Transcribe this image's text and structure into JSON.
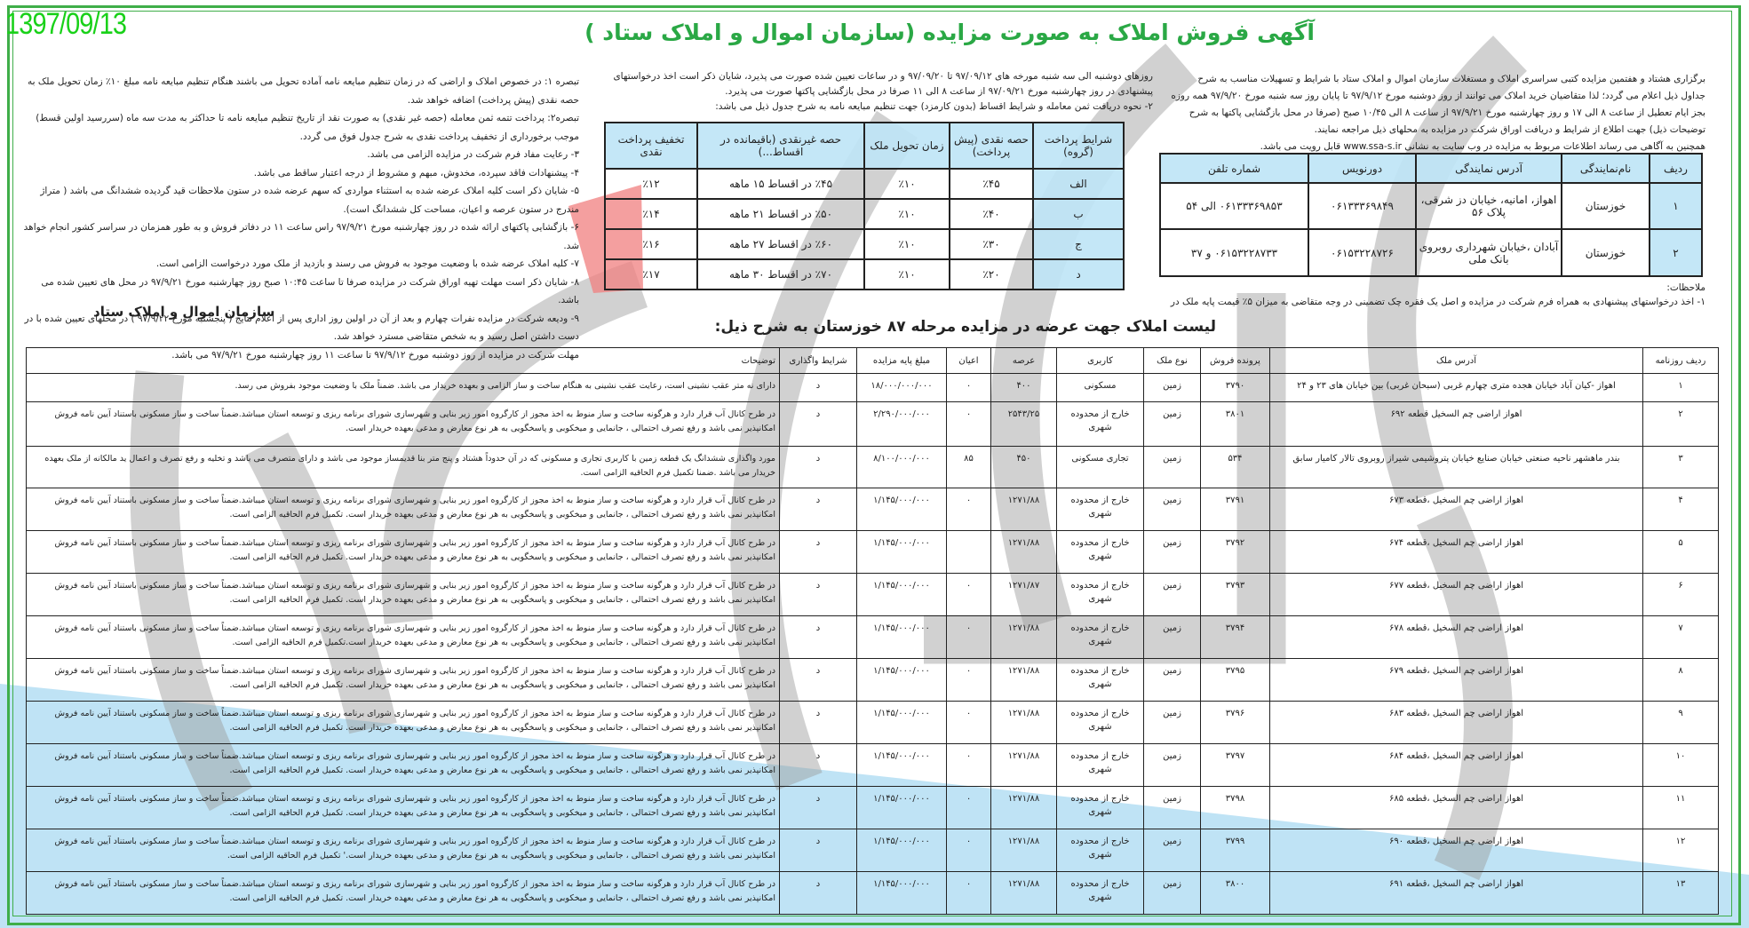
{
  "header": {
    "date": "1397/09/13",
    "title": "آگهی فروش املاک به صورت مزایده  (سازمان اموال و املاک ستاد )"
  },
  "colors": {
    "frame": "#3fae49",
    "title": "#2aa845",
    "date": "#19d119",
    "table_header": "#bee4f6"
  },
  "intro": {
    "paragraph": "برگزاری هشتاد و هفتمین مزایده کتبی سراسری املاک و مستغلات سازمان اموال و املاک ستاد با شرایط و تسهیلات مناسب به شرح جداول ذیل اعلام می گردد؛ لذا متقاضیان خرید املاک می توانند از روز دوشنبه مورخ ۹۷/۹/۱۲ تا پایان روز سه شنبه مورخ ۹۷/۹/۲۰ همه روزه بجز ایام تعطیل از ساعت ۸ الی ۱۷ و روز چهارشنبه مورخ ۹۷/۹/۲۱ از ساعت ۸ الی ۱۰/۴۵ صبح (صرفا در محل بازگشایی پاکتها به شرح توضیحات ذیل)  جهت اطلاع از شرایط و دریافت اوراق شرکت در مزایده به محلهای ذیل مراجعه نمایند.",
    "website_line": "همچنین به آگاهی می رساند اطلاعات مربوط به مزایده در وب سایت به نشانی www.ssa-s.ir قابل رویت می باشد."
  },
  "rep_table": {
    "headers": [
      "ردیف",
      "نام‌نمایندگی",
      "آدرس نمایندگی",
      "دورنویس",
      "شماره تلفن"
    ],
    "rows": [
      [
        "۱",
        "خوزستان",
        "اهواز، امانیه، خیابان دز شرقی، پلاک ۵۶",
        "۰۶۱۳۳۳۶۹۸۴۹",
        "۰۶۱۳۳۳۶۹۸۵۳ الی ۵۴"
      ],
      [
        "۲",
        "خوزستان",
        "آبادان ،خیابان شهرداری روبروی بانک ملی",
        "۰۶۱۵۳۲۲۸۷۲۶",
        "۰۶۱۵۳۲۲۸۷۳۳ و ۳۷"
      ]
    ]
  },
  "notes": {
    "label": "ملاحظات:",
    "item1": "۱- اخذ درخواستهای پیشنهادی به همراه فرم شرکت در مزایده و اصل یک فقره چک تضمینی در وجه متقاضی به میزان ۵٪ قیمت پایه ملک در"
  },
  "middle": {
    "paragraph": "روزهای دوشنبه الی سه شنبه مورخه های ۹۷/۰۹/۱۲ تا ۹۷/۰۹/۲۰ و در ساعات تعیین شده صورت می پذیرد، شایان ذکر است اخذ درخواستهای پیشنهادی در روز چهارشنبه مورخ ۹۷/۰۹/۲۱ از ساعت ۸ الی ۱۱ صرفا در محل بازگشایی پاکتها صورت می پذیرد.",
    "item2": "۲-  نحوه دریافت ثمن معامله و شرایط اقساط (بدون کارمزد) جهت تنظیم مبایعه نامه به شرح جدول ذیل می باشد:"
  },
  "payment_table": {
    "headers": [
      "شرایط پرداخت (گروه)",
      "حصه نقدی (پیش پرداخت)",
      "زمان تحویل ملک",
      "حصه غیرنقدی (باقیمانده در اقساط...)",
      "تخفیف پرداخت نقدی"
    ],
    "rows": [
      [
        "الف",
        "٪۴۵",
        "٪۱۰",
        "٪۴۵ در اقساط ۱۵ ماهه",
        "٪۱۲"
      ],
      [
        "ب",
        "٪۴۰",
        "٪۱۰",
        "٪۵۰ در اقساط ۲۱ ماهه",
        "٪۱۴"
      ],
      [
        "ج",
        "٪۳۰",
        "٪۱۰",
        "٪۶۰ در اقساط ۲۷ ماهه",
        "٪۱۶"
      ],
      [
        "د",
        "٪۲۰",
        "٪۱۰",
        "٪۷۰ در اقساط ۳۰ ماهه",
        "٪۱۷"
      ]
    ]
  },
  "left_notes": [
    "تبصره ۱: در خصوص املاک و اراضی که در زمان تنظیم مبایعه نامه آماده تحویل می باشند هنگام تنظیم مبایعه نامه مبلغ ۱۰٪ زمان تحویل ملک به حصه نقدی (پیش پرداخت) اضافه خواهد شد.",
    "تبصره۲: پرداخت تتمه ثمن معامله (حصه غیر نقدی) به صورت نقد از تاریخ تنظیم مبایعه نامه تا حداکثر به مدت سه ماه (سررسید اولین قسط) موجب برخورداری از تخفیف پرداخت نقدی به شرح جدول فوق می گردد.",
    "۳-  رعایت مفاد فرم شرکت در مزایده الزامی می باشد.",
    "۴-  پیشنهادات فاقد سپرده، مخدوش، مبهم و مشروط از درجه اعتبار ساقط می باشد.",
    "۵-  شایان ذکر است کلیه املاک عرضه شده به استثناء مواردی که سهم عرضه شده در ستون ملاحظات قید گردیده ششدانگ می باشد ( متراژ مندرج در ستون عرصه و اعیان، مساحت کل ششدانگ است).",
    "۶-  بازگشایی پاکتهای ارائه شده در روز چهارشنبه مورخ ۹۷/۹/۲۱ راس ساعت ۱۱ در دفاتر فروش و به طور همزمان در سراسر کشور انجام خواهد شد.",
    "۷-  کلیه املاک عرضه شده با وضعیت موجود به فروش می رسند و بازدید از ملک مورد درخواست الزامی است.",
    "۸-  شایان ذکر است مهلت تهیه اوراق شرکت در مزایده صرفا تا ساعت ۱۰:۴۵ صبح روز چهارشنبه مورخ ۹۷/۹/۲۱ در محل های تعیین شده می باشد.",
    "۹-  ودیعه شرکت در مزایده نفرات چهارم و بعد از آن در اولین روز اداری پس از اعلام نتایج ( پنجشنبه مورخ ۹۷/۹/۲۲ ) در محلهای تعیین شده با در دست داشتن اصل رسید و به شخص متقاضی مسترد خواهد شد.",
    "مهلت شرکت در مزایده از روز دوشنبه مورخ ۹۷/۹/۱۲ تا ساعت ۱۱ روز چهارشنبه مورخ ۹۷/۹/۲۱ می باشد."
  ],
  "signature": "سازمان اموال و املاک ستاد",
  "listing": {
    "title": "لیست املاک جهت عرضه در مزایده مرحله ۸۷ خوزستان به شرح ذیل:",
    "headers": [
      "ردیف روزنامه",
      "آدرس ملک",
      "پرونده فروش",
      "نوع ملک",
      "کاربری",
      "عرصه",
      "اعیان",
      "مبلغ پایه مزایده",
      "شرایط واگذاری",
      "توضیحات"
    ],
    "rows": [
      [
        "۱",
        "اهواز -کیان آباد خیابان هجده متری چهارم غربی (سبحان غربی) بین خیابان های ۲۳ و ۲۴",
        "۳۷۹۰",
        "زمین",
        "مسکونی",
        "۴۰۰",
        "۰",
        "۱۸/۰۰۰/۰۰۰/۰۰۰",
        "د",
        "دارای نه متر عقب نشینی است، رعایت عقب نشینی به هنگام ساخت و ساز الزامی و بعهده خریدار می باشد. ضمناً ملک با وضعیت موجود بفروش می رسد."
      ],
      [
        "۲",
        "اهواز اراضی چم السخیل قطعه ۶۹۲",
        "۳۸۰۱",
        "زمین",
        "خارج از محدوده شهری",
        "۲۵۴۳/۲۵",
        "۰",
        "۲/۲۹۰/۰۰۰/۰۰۰",
        "د",
        "در طرح کانال آب قرار دارد و هرگونه ساخت و ساز منوط به اخذ مجوز از کارگروه امور زیر بنایی و شهرسازی شورای برنامه ریزی و توسعه استان میباشد.ضمناً ساخت و ساز مسکونی باستناد آیین نامه فروش امکانپذیر نمی باشد و رفع تصرف احتمالی ، جانمایی و میخکوبی و پاسخگویی به هر نوع معارض و مدعی بعهده خریدار است."
      ],
      [
        "۳",
        "بندر ماهشهر ناحیه صنعتی خیابان صنایع خیابان پتروشیمی شیراز روبروی تالار کامیار سابق",
        "۵۳۴",
        "زمین",
        "تجاری مسکونی",
        "۴۵۰",
        "۸۵",
        "۸/۱۰۰/۰۰۰/۰۰۰",
        "د",
        "مورد واگذاری ششدانگ یک قطعه زمین با کاربری تجاری و مسکونی که در آن حدوداً هشتاد و پنج متر بنا قدیمساز موجود می باشد و دارای متصرف می باشد و تخلیه و رفع تصرف و اعمال ید مالکانه از ملک بعهده خریدار می باشد .ضمنا تکمیل فرم الحاقیه الزامی است."
      ],
      [
        "۴",
        "اهواز اراضی چم السخیل ،قطعه ۶۷۳",
        "۳۷۹۱",
        "زمین",
        "خارج از محدوده شهری",
        "۱۲۷۱/۸۸",
        "۰",
        "۱/۱۴۵/۰۰۰/۰۰۰",
        "د",
        "در طرح کانال آب قرار دارد و هرگونه ساخت و ساز منوط به اخذ مجوز از کارگروه امور زیر بنایی و شهرسازی شورای برنامه ریزی و توسعه استان میباشد.ضمناً ساخت و ساز مسکونی باستناد آیین نامه فروش امکانپذیر نمی باشد و رفع تصرف احتمالی ، جانمایی و میخکوبی و پاسخگویی به هر نوع معارض و مدعی بعهده خریدار است. تکمیل فرم الحاقیه الزامی است."
      ],
      [
        "۵",
        "اهواز اراضی چم السخیل ،قطعه ۶۷۴",
        "۳۷۹۲",
        "زمین",
        "خارج از محدوده شهری",
        "۱۲۷۱/۸۸",
        "",
        "۱/۱۴۵/۰۰۰/۰۰۰",
        "د",
        "در طرح کانال آب قرار دارد و هرگونه ساخت و ساز منوط به اخذ مجوز از کارگروه امور زیر بنایی و شهرسازی شورای برنامه ریزی و توسعه استان میباشد.ضمناً ساخت و ساز مسکونی باستناد آیین نامه فروش امکانپذیر نمی باشد و رفع تصرف احتمالی ، جانمایی و میخکوبی و پاسخگویی به هر نوع معارض و مدعی بعهده خریدار است. تکمیل فرم الحاقیه الزامی است."
      ],
      [
        "۶",
        "اهواز اراضی چم السخیل ،قطعه ۶۷۷",
        "۳۷۹۳",
        "زمین",
        "خارج از محدوده شهری",
        "۱۲۷۱/۸۷",
        "۰",
        "۱/۱۴۵/۰۰۰/۰۰۰",
        "د",
        "در طرح کانال آب قرار دارد و هرگونه ساخت و ساز منوط به اخذ مجوز از کارگروه امور زیر بنایی و شهرسازی شورای برنامه ریزی و توسعه استان میباشد.ضمناً ساخت و ساز مسکونی باستناد آیین نامه فروش امکانپذیر نمی باشد و رفع تصرف احتمالی ، جانمایی و میخکوبی و پاسخگویی به هر نوع معارض و مدعی بعهده خریدار است. تکمیل فرم الحاقیه الزامی است."
      ],
      [
        "۷",
        "اهواز اراضی چم السخیل ،قطعه ۶۷۸",
        "۳۷۹۴",
        "زمین",
        "خارج از محدوده شهری",
        "۱۲۷۱/۸۸",
        "۰",
        "۱/۱۴۵/۰۰۰/۰۰۰",
        "د",
        "در طرح کانال آب قرار دارد و هرگونه ساخت و ساز منوط به اخذ مجوز از کارگروه امور زیر بنایی و شهرسازی شورای برنامه ریزی و توسعه استان میباشد.ضمناً ساخت و ساز مسکونی باستناد آیین نامه فروش امکانپذیر نمی باشد و رفع تصرف احتمالی ، جانمایی و میخکوبی و پاسخگویی به هر نوع معارض و مدعی بعهده خریدار است.تکمیل فرم الحاقیه الزامی است."
      ],
      [
        "۸",
        "اهواز اراضی چم السخیل ،قطعه ۶۷۹",
        "۳۷۹۵",
        "زمین",
        "خارج از محدوده شهری",
        "۱۲۷۱/۸۸",
        "۰",
        "۱/۱۴۵/۰۰۰/۰۰۰",
        "د",
        "در طرح کانال آب قرار دارد و هرگونه ساخت و ساز منوط به اخذ مجوز از کارگروه امور زیر بنایی و شهرسازی شورای برنامه ریزی و توسعه استان میباشد.ضمناً ساخت و ساز مسکونی باستناد آیین نامه فروش امکانپذیر نمی باشد و رفع تصرف احتمالی ، جانمایی و میخکوبی و پاسخگویی به هر نوع معارض و مدعی بعهده خریدار است. تکمیل فرم الحاقیه الزامی است."
      ],
      [
        "۹",
        "اهواز اراضی چم السخیل ،قطعه ۶۸۳",
        "۳۷۹۶",
        "زمین",
        "خارج از محدوده شهری",
        "۱۲۷۱/۸۸",
        "۰",
        "۱/۱۴۵/۰۰۰/۰۰۰",
        "د",
        "در طرح کانال آب قرار دارد و هرگونه ساخت و ساز منوط به اخذ مجوز از کارگروه امور زیر بنایی و شهرسازی شورای برنامه ریزی و توسعه استان میباشد.ضمناً ساخت و ساز مسکونی باستناد آیین نامه فروش امکانپذیر نمی باشد و رفع تصرف احتمالی ، جانمایی و میخکوبی و پاسخگویی به هر نوع معارض و مدعی بعهده خریدار است. تکمیل فرم الحاقیه الزامی است."
      ],
      [
        "۱۰",
        "اهواز اراضی چم السخیل ،قطعه ۶۸۴",
        "۳۷۹۷",
        "زمین",
        "خارج از محدوده شهری",
        "۱۲۷۱/۸۸",
        "۰",
        "۱/۱۴۵/۰۰۰/۰۰۰",
        "د",
        "در طرح کانال آب قرار دارد و هرگونه ساخت و ساز منوط به اخذ مجوز از کارگروه امور زیر بنایی و شهرسازی شورای برنامه ریزی و توسعه استان میباشد.ضمناً ساخت و ساز مسکونی باستناد آیین نامه فروش امکانپذیر نمی باشد و رفع تصرف احتمالی ، جانمایی و میخکوبی و پاسخگویی به هر نوع معارض و مدعی بعهده خریدار است. تکمیل فرم الحاقیه الزامی است."
      ],
      [
        "۱۱",
        "اهواز اراضی چم السخیل ،قطعه ۶۸۵",
        "۳۷۹۸",
        "زمین",
        "خارج از محدوده شهری",
        "۱۲۷۱/۸۸",
        "۰",
        "۱/۱۴۵/۰۰۰/۰۰۰",
        "د",
        "در طرح کانال آب قرار دارد و هرگونه ساخت و ساز منوط به اخذ مجوز از کارگروه امور زیر بنایی و شهرسازی شورای برنامه ریزی و توسعه استان میباشد.ضمناً ساخت و ساز مسکونی باستناد آیین نامه فروش امکانپذیر نمی باشد و رفع تصرف احتمالی ، جانمایی و میخکوبی و پاسخگویی به هر نوع معارض و مدعی بعهده خریدار است. تکمیل فرم الحاقیه الزامی است."
      ],
      [
        "۱۲",
        "اهواز اراضی چم السخیل ،قطعه ۶۹۰",
        "۳۷۹۹",
        "زمین",
        "خارج از محدوده شهری",
        "۱۲۷۱/۸۸",
        "۰",
        "۱/۱۴۵/۰۰۰/۰۰۰",
        "د",
        "در طرح کانال آب قرار دارد و هرگونه ساخت و ساز منوط به اخذ مجوز از کارگروه امور زیر بنایی و شهرسازی شورای برنامه ریزی و توسعه استان میباشد.ضمناً ساخت و ساز مسکونی باستناد آیین نامه فروش امکانپذیر نمی باشد و رفع تصرف احتمالی ، جانمایی و میخکوبی و پاسخگویی به هر نوع معارض و مدعی بعهده خریدار است.' تکمیل فرم الحاقیه الزامی است."
      ],
      [
        "۱۳",
        "اهواز اراضی چم السخیل ،قطعه ۶۹۱",
        "۳۸۰۰",
        "زمین",
        "خارج از محدوده شهری",
        "۱۲۷۱/۸۸",
        "۰",
        "۱/۱۴۵/۰۰۰/۰۰۰",
        "د",
        "در طرح کانال آب قرار دارد و هرگونه ساخت و ساز منوط به اخذ مجوز از کارگروه امور زیر بنایی و شهرسازی شورای برنامه ریزی و توسعه استان میباشد.ضمناً ساخت و ساز مسکونی باستناد آیین نامه فروش امکانپذیر نمی باشد و رفع تصرف احتمالی ، جانمایی و میخکوبی و پاسخگویی به هر نوع معارض و مدعی بعهده خریدار است. تکمیل فرم الحاقیه الزامی است."
      ]
    ]
  }
}
